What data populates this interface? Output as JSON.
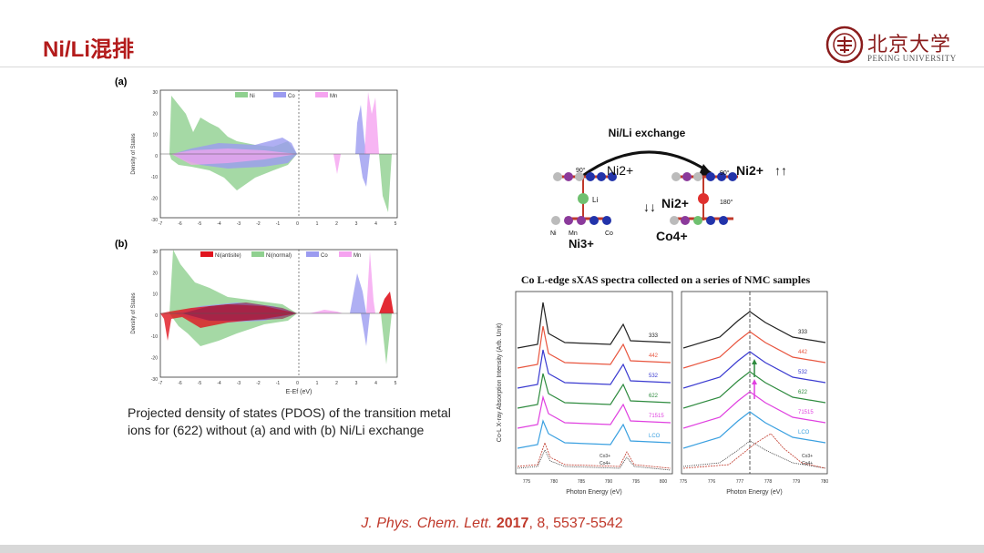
{
  "slide": {
    "title": "Ni/Li混排",
    "university_cn": "北京大学",
    "university_en": "PEKING UNIVERSITY",
    "caption": "Projected density of states (PDOS) of the transition metal ions for (622) without (a) and with (b) Ni/Li exchange",
    "citation": {
      "journal": "J. Phys. Chem. Lett.",
      "year": "2017",
      "rest": ", 8, 5537-5542"
    }
  },
  "colors": {
    "title": "#b31b1b",
    "citation": "#c0392b",
    "ni": "#8fd08f",
    "co": "#9b9bf0",
    "mn": "#f5a3f0",
    "ni_antisite": "#e0141e"
  },
  "pdos": {
    "panel_a_label": "(a)",
    "panel_b_label": "(b)",
    "ylabel": "Density of States",
    "xlabel": "E-Ef (eV)",
    "legend_a": [
      "Ni",
      "Co",
      "Mn"
    ],
    "legend_b": [
      "Ni(antisite)",
      "Ni(normal)",
      "Co",
      "Mn"
    ],
    "x_ticks": [
      "-7",
      "-6",
      "-5",
      "-4",
      "-3",
      "-2",
      "-1",
      "0",
      "1",
      "2",
      "3",
      "4",
      "5"
    ],
    "y_ticks": [
      "30",
      "20",
      "10",
      "0",
      "-10",
      "-20",
      "-30"
    ]
  },
  "schematic": {
    "title": "Ni/Li exchange",
    "ni2_left": "Ni2+",
    "ni2_mid": "Ni2+",
    "ni2_right": "Ni2+",
    "ni3": "Ni3+",
    "co4": "Co4+",
    "angle_90_left": "90°",
    "angle_90_right": "90°",
    "angle_180": "180°",
    "li": "Li",
    "ni_small": "Ni",
    "mn_small": "Mn",
    "co_small": "Co"
  },
  "sxas": {
    "title": "Co L-edge sXAS spectra collected on a series of NMC samples",
    "ylabel": "Co-L X-ray Absorption Intensity (Arb. Unit)",
    "xlabel_left": "Photon Energy (eV)",
    "xlabel_right": "Photon Energy (eV)",
    "x_ticks_left": [
      "775",
      "780",
      "785",
      "790",
      "795",
      "800"
    ],
    "x_ticks_right": [
      "775",
      "776",
      "777",
      "778",
      "779",
      "780"
    ],
    "samples": [
      "333",
      "442",
      "532",
      "622",
      "71515",
      "LCO"
    ],
    "sample_colors": [
      "#222222",
      "#e8553e",
      "#3a3ad0",
      "#2e8b3e",
      "#e040e0",
      "#3aa0e0"
    ],
    "legend_ref": [
      "Co3+",
      "Co4+"
    ]
  }
}
